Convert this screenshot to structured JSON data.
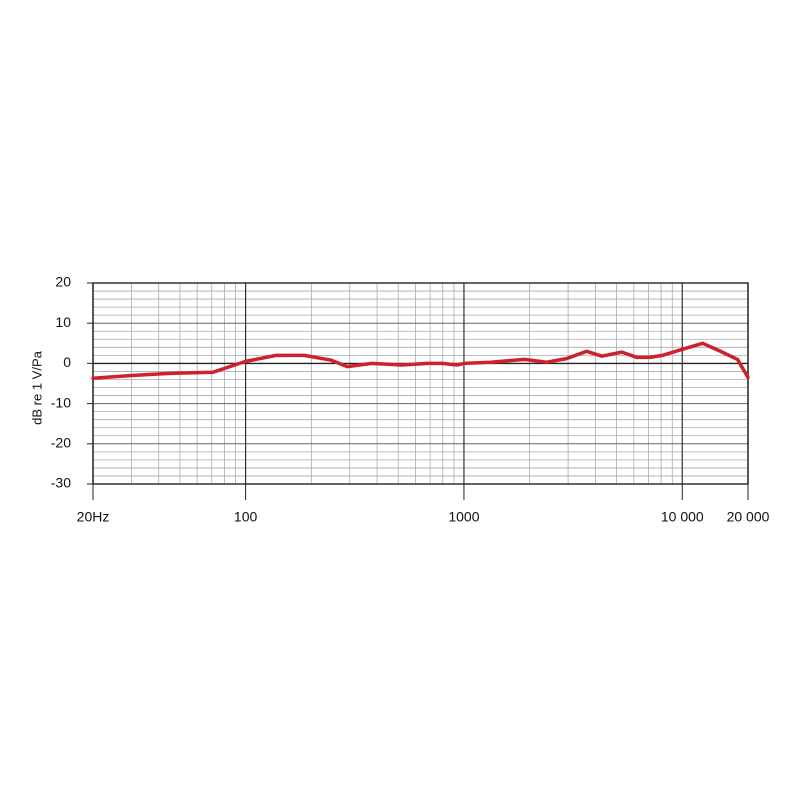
{
  "chart_data": {
    "type": "line",
    "ylabel": "dB re 1 V/Pa",
    "x": [
      20,
      30,
      45,
      71,
      100,
      138,
      186,
      247,
      292,
      378,
      520,
      680,
      795,
      930,
      1000,
      1330,
      1890,
      2390,
      2950,
      3650,
      4280,
      5290,
      6200,
      7100,
      8100,
      10000,
      12400,
      14700,
      17900,
      20000
    ],
    "series": [
      {
        "color": "#d0202a",
        "values": [
          -3.7,
          -3.0,
          -2.5,
          -2.2,
          0.5,
          2,
          2,
          0.8,
          -0.8,
          0,
          -0.4,
          0,
          0,
          -0.4,
          0,
          0.3,
          1,
          0.3,
          1.2,
          3,
          1.8,
          2.8,
          1.5,
          1.5,
          2,
          3.5,
          5,
          3.2,
          1,
          -3.5
        ]
      }
    ],
    "xlog": true,
    "xlim": [
      20,
      20000
    ],
    "ylim": [
      -30,
      20
    ],
    "xticks": [
      {
        "value": 20,
        "label": "20Hz"
      },
      100,
      1000,
      {
        "value": 10000,
        "label": "10 000"
      },
      {
        "value": 20000,
        "label": "20 000"
      }
    ],
    "yticks": [
      -30,
      -20,
      -10,
      0,
      10,
      20
    ],
    "xminor": [
      30,
      40,
      50,
      60,
      70,
      80,
      90,
      200,
      300,
      400,
      500,
      600,
      700,
      800,
      900,
      2000,
      3000,
      4000,
      5000,
      6000,
      7000,
      8000,
      9000
    ],
    "yminor": [
      -28,
      -26,
      -24,
      -22,
      -18,
      -16,
      -14,
      -12,
      -8,
      -6,
      -4,
      -2,
      2,
      4,
      6,
      8,
      12,
      14,
      16,
      18
    ],
    "grid": true
  }
}
